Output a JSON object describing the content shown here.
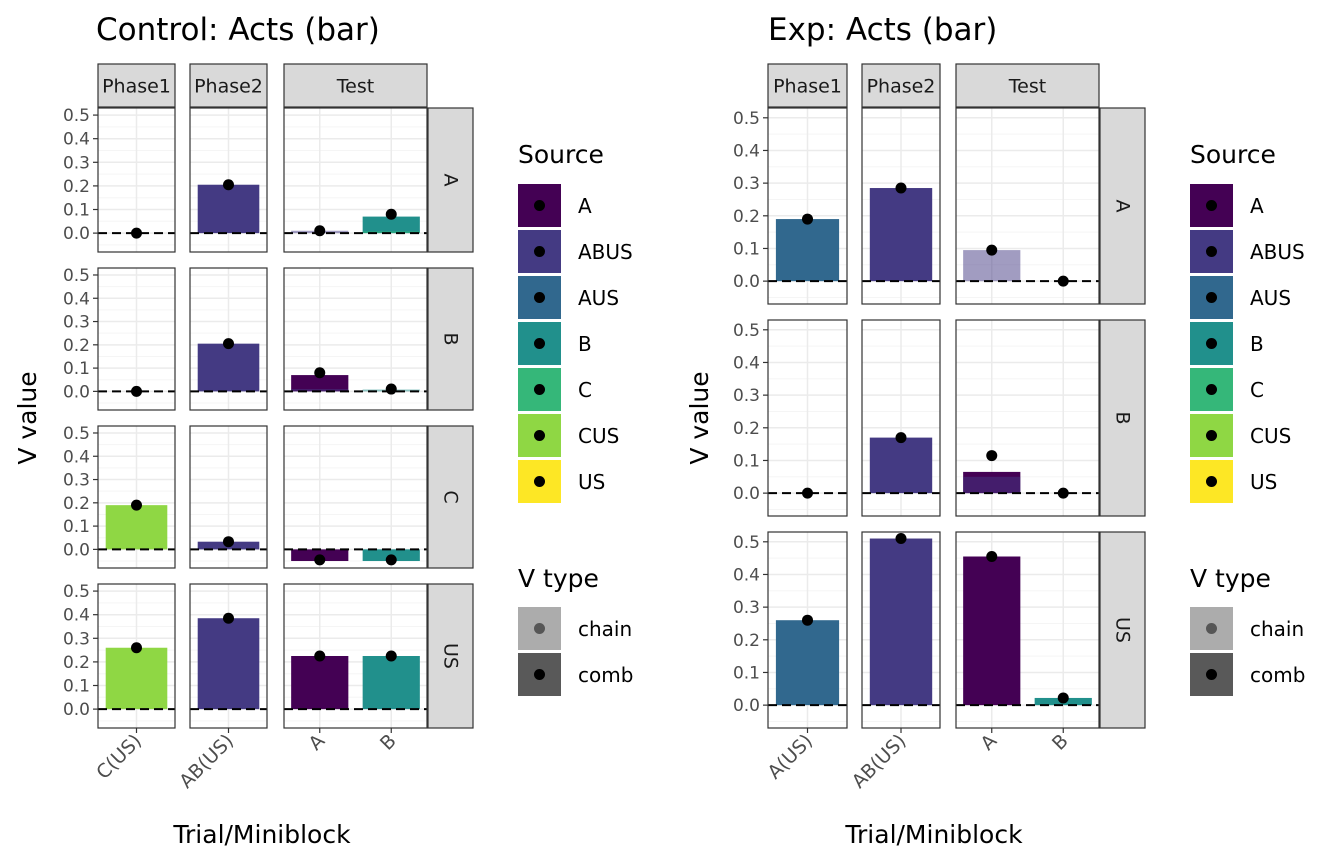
{
  "chart_data": [
    {
      "type": "bar",
      "title": "Control: Acts (bar)",
      "xlabel": "Trial/Miniblock",
      "ylabel": "V value",
      "ylim": [
        -0.08,
        0.53
      ],
      "yticks": [
        0.0,
        0.1,
        0.2,
        0.3,
        0.4,
        0.5
      ],
      "ytick_labels": [
        "0.0",
        "0.1",
        "0.2",
        "0.3",
        "0.4",
        "0.5"
      ],
      "grid": true,
      "facet_columns": [
        {
          "label": "Phase1",
          "categories": [
            "C(US)"
          ]
        },
        {
          "label": "Phase2",
          "categories": [
            "AB(US)"
          ]
        },
        {
          "label": "Test",
          "categories": [
            "A",
            "B"
          ]
        }
      ],
      "facet_rows": [
        "A",
        "B",
        "C",
        "US"
      ],
      "bars": [
        {
          "row": "A",
          "col": "Phase2",
          "category": "AB(US)",
          "source": "ABUS",
          "type": "comb",
          "value": 0.205
        },
        {
          "row": "A",
          "col": "Test",
          "category": "A",
          "source": "ABUS",
          "type": "chain",
          "value": 0.01
        },
        {
          "row": "A",
          "col": "Test",
          "category": "B",
          "source": "B",
          "type": "comb",
          "value": 0.07
        },
        {
          "row": "A",
          "col": "Test",
          "category": "B",
          "source": "C",
          "type": "chain",
          "value": 0.008
        },
        {
          "row": "B",
          "col": "Phase2",
          "category": "AB(US)",
          "source": "ABUS",
          "type": "comb",
          "value": 0.205
        },
        {
          "row": "B",
          "col": "Test",
          "category": "A",
          "source": "A",
          "type": "comb",
          "value": 0.07
        },
        {
          "row": "B",
          "col": "Test",
          "category": "A",
          "source": "ABUS",
          "type": "chain",
          "value": 0.01
        },
        {
          "row": "B",
          "col": "Test",
          "category": "B",
          "source": "B",
          "type": "chain",
          "value": 0.008
        },
        {
          "row": "C",
          "col": "Phase1",
          "category": "C(US)",
          "source": "CUS",
          "type": "comb",
          "value": 0.19
        },
        {
          "row": "C",
          "col": "Phase2",
          "category": "AB(US)",
          "source": "ABUS",
          "type": "comb",
          "value": 0.033
        },
        {
          "row": "C",
          "col": "Test",
          "category": "A",
          "source": "A",
          "type": "comb",
          "value": -0.05
        },
        {
          "row": "C",
          "col": "Test",
          "category": "B",
          "source": "B",
          "type": "comb",
          "value": -0.05
        },
        {
          "row": "US",
          "col": "Phase1",
          "category": "C(US)",
          "source": "CUS",
          "type": "comb",
          "value": 0.26
        },
        {
          "row": "US",
          "col": "Phase2",
          "category": "AB(US)",
          "source": "ABUS",
          "type": "comb",
          "value": 0.385
        },
        {
          "row": "US",
          "col": "Test",
          "category": "A",
          "source": "A",
          "type": "comb",
          "value": 0.225
        },
        {
          "row": "US",
          "col": "Test",
          "category": "B",
          "source": "B",
          "type": "comb",
          "value": 0.225
        }
      ],
      "points": [
        {
          "row": "A",
          "col": "Phase1",
          "category": "C(US)",
          "value": 0.0
        },
        {
          "row": "A",
          "col": "Phase2",
          "category": "AB(US)",
          "value": 0.205
        },
        {
          "row": "A",
          "col": "Test",
          "category": "A",
          "value": 0.01
        },
        {
          "row": "A",
          "col": "Test",
          "category": "B",
          "value": 0.08
        },
        {
          "row": "B",
          "col": "Phase1",
          "category": "C(US)",
          "value": 0.0
        },
        {
          "row": "B",
          "col": "Phase2",
          "category": "AB(US)",
          "value": 0.205
        },
        {
          "row": "B",
          "col": "Test",
          "category": "A",
          "value": 0.08
        },
        {
          "row": "B",
          "col": "Test",
          "category": "B",
          "value": 0.01
        },
        {
          "row": "C",
          "col": "Phase1",
          "category": "C(US)",
          "value": 0.19
        },
        {
          "row": "C",
          "col": "Phase2",
          "category": "AB(US)",
          "value": 0.033
        },
        {
          "row": "C",
          "col": "Test",
          "category": "A",
          "value": -0.045
        },
        {
          "row": "C",
          "col": "Test",
          "category": "B",
          "value": -0.045
        },
        {
          "row": "US",
          "col": "Phase1",
          "category": "C(US)",
          "value": 0.26
        },
        {
          "row": "US",
          "col": "Phase2",
          "category": "AB(US)",
          "value": 0.385
        },
        {
          "row": "US",
          "col": "Test",
          "category": "A",
          "value": 0.225
        },
        {
          "row": "US",
          "col": "Test",
          "category": "B",
          "value": 0.225
        }
      ]
    },
    {
      "type": "bar",
      "title": "Exp: Acts (bar)",
      "xlabel": "Trial/Miniblock",
      "ylabel": "V value",
      "ylim": [
        -0.07,
        0.53
      ],
      "yticks": [
        0.0,
        0.1,
        0.2,
        0.3,
        0.4,
        0.5
      ],
      "ytick_labels": [
        "0.0",
        "0.1",
        "0.2",
        "0.3",
        "0.4",
        "0.5"
      ],
      "grid": true,
      "facet_columns": [
        {
          "label": "Phase1",
          "categories": [
            "A(US)"
          ]
        },
        {
          "label": "Phase2",
          "categories": [
            "AB(US)"
          ]
        },
        {
          "label": "Test",
          "categories": [
            "A",
            "B"
          ]
        }
      ],
      "facet_rows": [
        "A",
        "B",
        "US"
      ],
      "bars": [
        {
          "row": "A",
          "col": "Phase1",
          "category": "A(US)",
          "source": "AUS",
          "type": "comb",
          "value": 0.19
        },
        {
          "row": "A",
          "col": "Phase2",
          "category": "AB(US)",
          "source": "ABUS",
          "type": "comb",
          "value": 0.285
        },
        {
          "row": "A",
          "col": "Test",
          "category": "A",
          "source": "ABUS",
          "type": "chain",
          "value": 0.095
        },
        {
          "row": "B",
          "col": "Phase2",
          "category": "AB(US)",
          "source": "ABUS",
          "type": "comb",
          "value": 0.17
        },
        {
          "row": "B",
          "col": "Test",
          "category": "A",
          "source": "A",
          "type": "comb",
          "value": 0.065
        },
        {
          "row": "B",
          "col": "Test",
          "category": "A",
          "source": "ABUS",
          "type": "chain",
          "value": 0.05
        },
        {
          "row": "US",
          "col": "Phase1",
          "category": "A(US)",
          "source": "AUS",
          "type": "comb",
          "value": 0.26
        },
        {
          "row": "US",
          "col": "Phase2",
          "category": "AB(US)",
          "source": "ABUS",
          "type": "comb",
          "value": 0.51
        },
        {
          "row": "US",
          "col": "Test",
          "category": "A",
          "source": "A",
          "type": "comb",
          "value": 0.455
        },
        {
          "row": "US",
          "col": "Test",
          "category": "B",
          "source": "B",
          "type": "comb",
          "value": 0.022
        }
      ],
      "points": [
        {
          "row": "A",
          "col": "Phase1",
          "category": "A(US)",
          "value": 0.19
        },
        {
          "row": "A",
          "col": "Phase2",
          "category": "AB(US)",
          "value": 0.285
        },
        {
          "row": "A",
          "col": "Test",
          "category": "A",
          "value": 0.095
        },
        {
          "row": "A",
          "col": "Test",
          "category": "B",
          "value": 0.0
        },
        {
          "row": "B",
          "col": "Phase1",
          "category": "A(US)",
          "value": 0.0
        },
        {
          "row": "B",
          "col": "Phase2",
          "category": "AB(US)",
          "value": 0.17
        },
        {
          "row": "B",
          "col": "Test",
          "category": "A",
          "value": 0.115
        },
        {
          "row": "B",
          "col": "Test",
          "category": "B",
          "value": 0.0
        },
        {
          "row": "US",
          "col": "Phase1",
          "category": "A(US)",
          "value": 0.26
        },
        {
          "row": "US",
          "col": "Phase2",
          "category": "AB(US)",
          "value": 0.51
        },
        {
          "row": "US",
          "col": "Test",
          "category": "A",
          "value": 0.455
        },
        {
          "row": "US",
          "col": "Test",
          "category": "B",
          "value": 0.022
        }
      ]
    }
  ],
  "legend": {
    "source_title": "Source",
    "sources": [
      {
        "name": "A",
        "color": "#440154"
      },
      {
        "name": "ABUS",
        "color": "#443A83"
      },
      {
        "name": "AUS",
        "color": "#31688E"
      },
      {
        "name": "B",
        "color": "#21908C"
      },
      {
        "name": "C",
        "color": "#35B779"
      },
      {
        "name": "CUS",
        "color": "#8FD744"
      },
      {
        "name": "US",
        "color": "#FDE725"
      }
    ],
    "vtype_title": "V type",
    "vtypes": [
      {
        "name": "chain",
        "alpha": 0.5
      },
      {
        "name": "comb",
        "alpha": 1.0
      }
    ]
  },
  "colors": {
    "strip_fill": "#D9D9D9",
    "panel_border": "#333333",
    "grid_major": "#EBEBEB",
    "grid_minor": "#F5F5F5",
    "point": "#000000"
  }
}
